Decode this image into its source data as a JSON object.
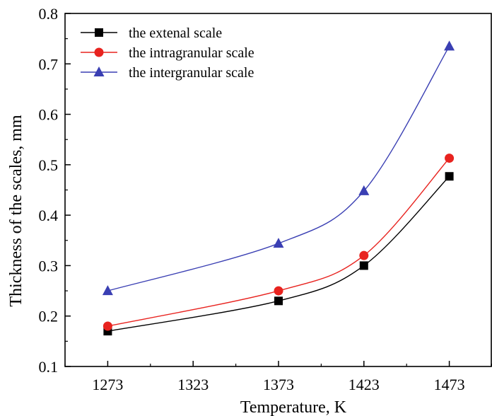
{
  "chart_data": {
    "type": "line",
    "xlabel": "Temperature, K",
    "ylabel": "Thickness of the  scales, mm",
    "xlim": [
      1248,
      1498
    ],
    "ylim": [
      0.1,
      0.8
    ],
    "xticks": [
      "1273",
      "1323",
      "1373",
      "1423",
      "1473"
    ],
    "yticks": [
      "0.1",
      "0.2",
      "0.3",
      "0.4",
      "0.5",
      "0.6",
      "0.7",
      "0.8"
    ],
    "x": [
      1273,
      1373,
      1423,
      1473
    ],
    "grid": false,
    "legend_position": "top-left",
    "series": [
      {
        "name": "the  extenal scale",
        "values": [
          0.17,
          0.23,
          0.3,
          0.477
        ],
        "color": "#000000",
        "marker": "square"
      },
      {
        "name": "the  intragranular scale",
        "values": [
          0.18,
          0.25,
          0.32,
          0.513
        ],
        "color": "#e8231f",
        "marker": "circle"
      },
      {
        "name": "the  intergranular scale",
        "values": [
          0.25,
          0.344,
          0.448,
          0.735
        ],
        "color": "#3a3fb3",
        "marker": "triangle"
      }
    ]
  }
}
